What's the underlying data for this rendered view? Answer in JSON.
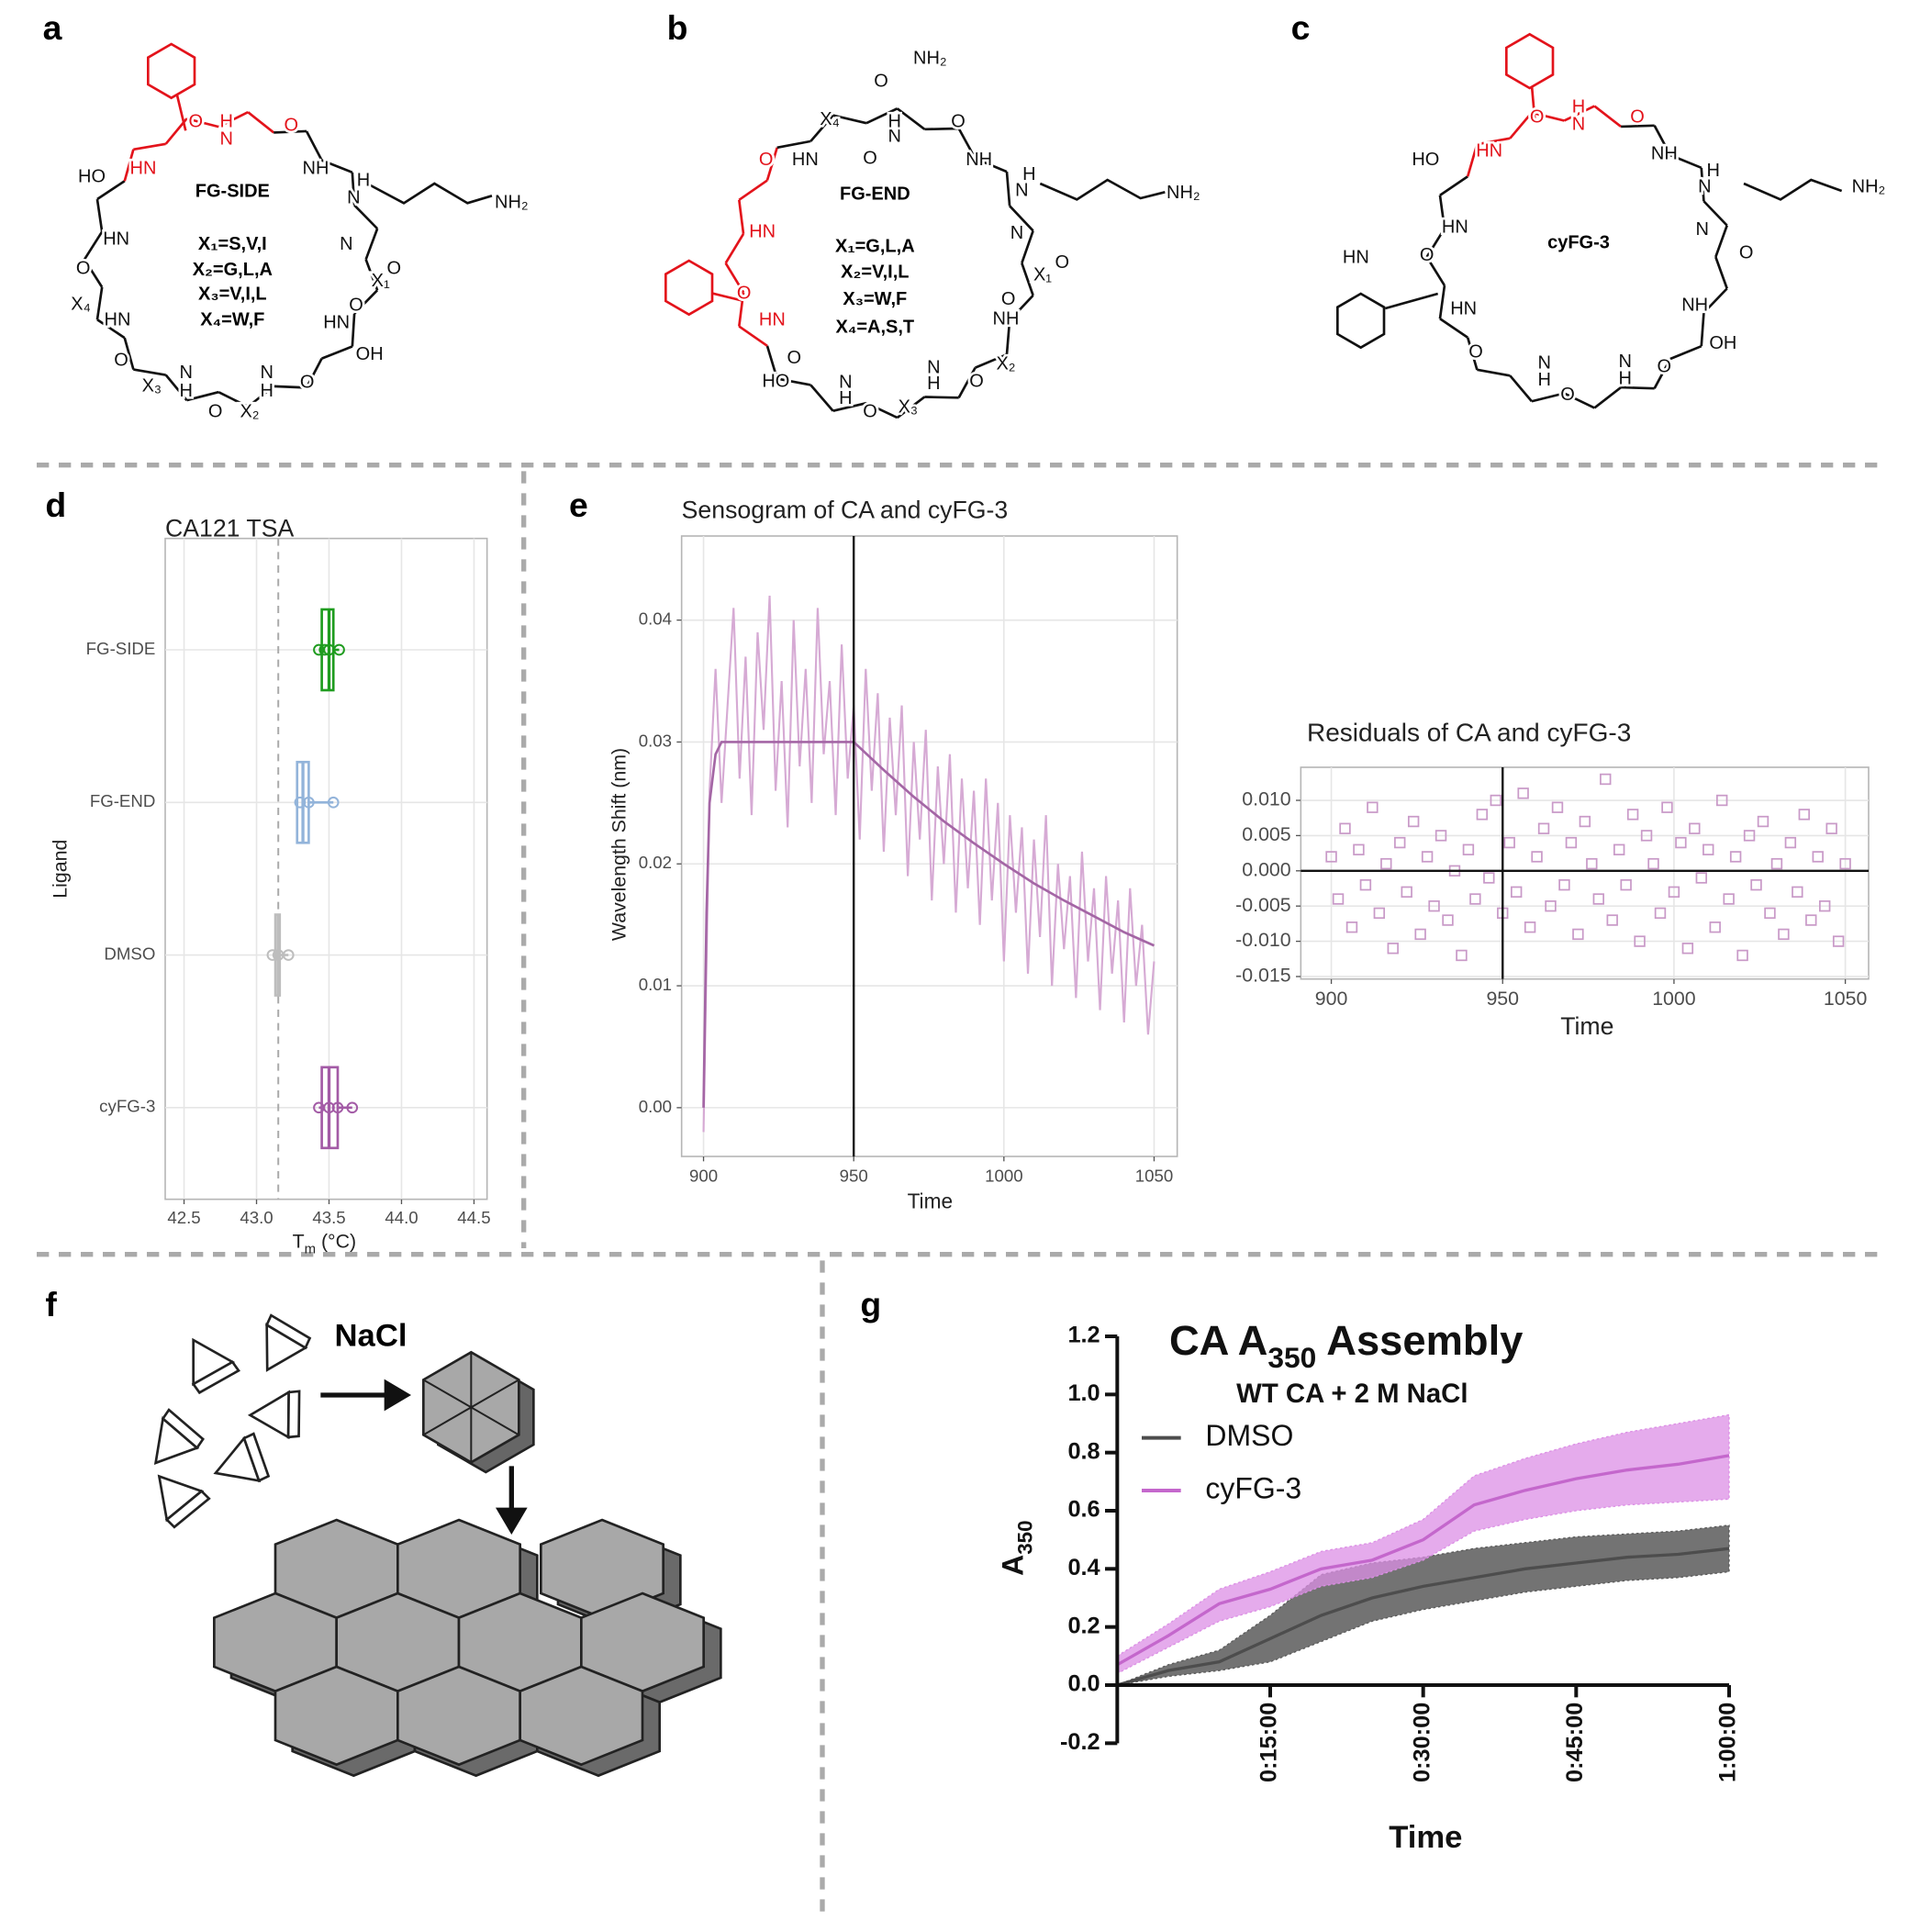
{
  "panel_labels": [
    "a",
    "b",
    "c",
    "d",
    "e",
    "f",
    "g"
  ],
  "structures": {
    "highlight_color": "#e3131b",
    "items": [
      {
        "center_label": "FG-SIDE",
        "substitutions": [
          "X₁=S,V,I",
          "X₂=G,L,A",
          "X₃=V,I,L",
          "X₄=W,F"
        ],
        "atoms": [
          {
            "text": "HN",
            "highlight": true
          },
          {
            "text": "O",
            "highlight": true
          },
          {
            "text": "H",
            "highlight": true
          },
          {
            "text": "N",
            "highlight": true
          },
          {
            "text": "O",
            "highlight": true
          },
          {
            "text": "NH"
          },
          {
            "text": "H"
          },
          {
            "text": "N"
          },
          {
            "text": "NH₂"
          },
          {
            "text": "N"
          },
          {
            "text": "O"
          },
          {
            "text": "X₁"
          },
          {
            "text": "O"
          },
          {
            "text": "HN"
          },
          {
            "text": "OH"
          },
          {
            "text": "HO"
          },
          {
            "text": "HN"
          },
          {
            "text": "O"
          },
          {
            "text": "X₄"
          },
          {
            "text": "HN"
          },
          {
            "text": "O"
          },
          {
            "text": "X₃"
          },
          {
            "text": "N"
          },
          {
            "text": "H"
          },
          {
            "text": "O"
          },
          {
            "text": "X₂"
          },
          {
            "text": "N"
          },
          {
            "text": "H"
          },
          {
            "text": "O"
          }
        ]
      },
      {
        "center_label": "FG-END",
        "substitutions": [
          "X₁=G,L,A",
          "X₂=V,I,L",
          "X₃=W,F",
          "X₄=A,S,T"
        ],
        "atoms": [
          {
            "text": "NH₂"
          },
          {
            "text": "O"
          },
          {
            "text": "X₄"
          },
          {
            "text": "HN"
          },
          {
            "text": "N"
          },
          {
            "text": "H"
          },
          {
            "text": "O"
          },
          {
            "text": "O"
          },
          {
            "text": "NH"
          },
          {
            "text": "H"
          },
          {
            "text": "N"
          },
          {
            "text": "NH₂"
          },
          {
            "text": "N"
          },
          {
            "text": "O"
          },
          {
            "text": "X₁"
          },
          {
            "text": "O"
          },
          {
            "text": "NH"
          },
          {
            "text": "X₂"
          },
          {
            "text": "O"
          },
          {
            "text": "N"
          },
          {
            "text": "H"
          },
          {
            "text": "X₃"
          },
          {
            "text": "O"
          },
          {
            "text": "N"
          },
          {
            "text": "H"
          },
          {
            "text": "O"
          },
          {
            "text": "HO"
          },
          {
            "text": "HN",
            "highlight": true
          },
          {
            "text": "O",
            "highlight": true
          },
          {
            "text": "HN",
            "highlight": true
          },
          {
            "text": "O",
            "highlight": true
          }
        ]
      },
      {
        "center_label": "cyFG-3",
        "substitutions": [],
        "atoms": [
          {
            "text": "HN",
            "highlight": true
          },
          {
            "text": "O",
            "highlight": true
          },
          {
            "text": "H",
            "highlight": true
          },
          {
            "text": "N",
            "highlight": true
          },
          {
            "text": "O",
            "highlight": true
          },
          {
            "text": "NH"
          },
          {
            "text": "H"
          },
          {
            "text": "N"
          },
          {
            "text": "NH₂"
          },
          {
            "text": "N"
          },
          {
            "text": "O"
          },
          {
            "text": "NH"
          },
          {
            "text": "OH"
          },
          {
            "text": "HO"
          },
          {
            "text": "HN"
          },
          {
            "text": "O"
          },
          {
            "text": "HN"
          },
          {
            "text": "HN"
          },
          {
            "text": "O"
          },
          {
            "text": "N"
          },
          {
            "text": "H"
          },
          {
            "text": "O"
          },
          {
            "text": "N"
          },
          {
            "text": "H"
          },
          {
            "text": "O"
          }
        ]
      }
    ]
  },
  "diagram_f": {
    "label": "NaCl"
  },
  "chart_data": [
    {
      "type": "box",
      "title": "CA121 TSA",
      "xlabel_parts": [
        "T",
        "m",
        " (°C)"
      ],
      "ylabel": "Ligand",
      "categories": [
        "FG-SIDE",
        "FG-END",
        "DMSO",
        "cyFG-3"
      ],
      "colors": [
        "#1f9c1f",
        "#93b4da",
        "#bdbdbd",
        "#a35ba6"
      ],
      "boxes": [
        {
          "min": 43.43,
          "q1": 43.45,
          "median": 43.5,
          "q3": 43.53,
          "max": 43.57,
          "points": [
            43.43,
            43.47,
            43.5,
            43.57
          ]
        },
        {
          "min": 43.28,
          "q1": 43.28,
          "median": 43.32,
          "q3": 43.36,
          "max": 43.53,
          "points": [
            43.3,
            43.36,
            43.53
          ]
        },
        {
          "min": 43.11,
          "q1": 43.13,
          "median": 43.15,
          "q3": 43.16,
          "max": 43.22,
          "points": [
            43.11,
            43.15,
            43.22
          ]
        },
        {
          "min": 43.43,
          "q1": 43.45,
          "median": 43.5,
          "q3": 43.56,
          "max": 43.66,
          "points": [
            43.43,
            43.5,
            43.56,
            43.66
          ]
        }
      ],
      "reference_line": 43.15,
      "xlim": [
        42.37,
        44.59
      ],
      "xticks": [
        42.5,
        {
          "value": 43,
          "label": "43.0"
        },
        43.5,
        {
          "value": 44,
          "label": "44.0"
        },
        44.5
      ],
      "grid": true
    },
    {
      "type": "line",
      "title": "Sensogram of CA and cyFG-3",
      "xlabel": "Time",
      "ylabel": "Wavelength Shift (nm)",
      "xlim": [
        892.7,
        1057.7
      ],
      "xticks": [
        900,
        950,
        1000,
        1050
      ],
      "ylim": [
        -0.004,
        0.0469
      ],
      "yticks": [
        {
          "value": 0,
          "label": "0.00"
        },
        0.01,
        0.02,
        0.03,
        0.04
      ],
      "vline": 950,
      "grid": true,
      "x": [
        900,
        902,
        904,
        906,
        908,
        910,
        912,
        914,
        916,
        918,
        920,
        922,
        924,
        926,
        928,
        930,
        932,
        934,
        936,
        938,
        940,
        942,
        944,
        946,
        948,
        950,
        952,
        954,
        956,
        958,
        960,
        962,
        964,
        966,
        968,
        970,
        972,
        974,
        976,
        978,
        980,
        982,
        984,
        986,
        988,
        990,
        992,
        994,
        996,
        998,
        1000,
        1002,
        1004,
        1006,
        1008,
        1010,
        1012,
        1014,
        1016,
        1018,
        1020,
        1022,
        1024,
        1026,
        1028,
        1030,
        1032,
        1034,
        1036,
        1038,
        1040,
        1042,
        1044,
        1046,
        1048,
        1050
      ],
      "series": [
        {
          "color": "#d6aad4",
          "values": [
            -0.002,
            0.026,
            0.036,
            0.025,
            0.033,
            0.041,
            0.027,
            0.037,
            0.024,
            0.039,
            0.031,
            0.042,
            0.026,
            0.035,
            0.023,
            0.04,
            0.028,
            0.036,
            0.025,
            0.041,
            0.029,
            0.035,
            0.024,
            0.038,
            0.027,
            0.033,
            0.022,
            0.036,
            0.026,
            0.034,
            0.021,
            0.032,
            0.024,
            0.033,
            0.019,
            0.03,
            0.022,
            0.031,
            0.017,
            0.028,
            0.02,
            0.029,
            0.016,
            0.027,
            0.018,
            0.026,
            0.015,
            0.027,
            0.017,
            0.025,
            0.012,
            0.024,
            0.016,
            0.023,
            0.011,
            0.022,
            0.014,
            0.024,
            0.01,
            0.02,
            0.013,
            0.019,
            0.009,
            0.021,
            0.012,
            0.018,
            0.008,
            0.019,
            0.011,
            0.017,
            0.007,
            0.018,
            0.01,
            0.015,
            0.006,
            0.012
          ]
        },
        {
          "color": "#a466a5",
          "x": [
            900,
            901,
            902,
            904,
            906,
            950,
            960,
            970,
            980,
            990,
            1000,
            1010,
            1020,
            1030,
            1040,
            1050
          ],
          "values": [
            0,
            0.016,
            0.025,
            0.029,
            0.03,
            0.03,
            0.0277,
            0.0255,
            0.0235,
            0.0217,
            0.02,
            0.0184,
            0.017,
            0.0157,
            0.0144,
            0.0133
          ]
        }
      ]
    },
    {
      "type": "scatter",
      "title": "Residuals of CA and cyFG-3",
      "xlabel": "Time",
      "xlim": [
        891.1,
        1056.8
      ],
      "xticks": [
        900,
        950,
        1000,
        1050
      ],
      "ylim": [
        -0.01535,
        0.01469
      ],
      "yticks": [
        {
          "value": 0.01,
          "label": "0.010"
        },
        0.005,
        {
          "value": 0,
          "label": "0.000"
        },
        -0.005,
        {
          "value": -0.01,
          "label": "-0.010"
        },
        -0.015
      ],
      "vline": 950,
      "hline": 0,
      "grid": true,
      "x": [
        900,
        902,
        904,
        906,
        908,
        910,
        912,
        914,
        916,
        918,
        920,
        922,
        924,
        926,
        928,
        930,
        932,
        934,
        936,
        938,
        940,
        942,
        944,
        946,
        948,
        950,
        952,
        954,
        956,
        958,
        960,
        962,
        964,
        966,
        968,
        970,
        972,
        974,
        976,
        978,
        980,
        982,
        984,
        986,
        988,
        990,
        992,
        994,
        996,
        998,
        1000,
        1002,
        1004,
        1006,
        1008,
        1010,
        1012,
        1014,
        1016,
        1018,
        1020,
        1022,
        1024,
        1026,
        1028,
        1030,
        1032,
        1034,
        1036,
        1038,
        1040,
        1042,
        1044,
        1046,
        1048,
        1050
      ],
      "series": [
        {
          "color": "#c99ac8",
          "values": [
            0.002,
            -0.004,
            0.006,
            -0.008,
            0.003,
            -0.002,
            0.009,
            -0.006,
            0.001,
            -0.011,
            0.004,
            -0.003,
            0.007,
            -0.009,
            0.002,
            -0.005,
            0.005,
            -0.007,
            0.0,
            -0.012,
            0.003,
            -0.004,
            0.008,
            -0.001,
            0.01,
            -0.006,
            0.004,
            -0.003,
            0.011,
            -0.008,
            0.002,
            0.006,
            -0.005,
            0.009,
            -0.002,
            0.004,
            -0.009,
            0.007,
            0.001,
            -0.004,
            0.013,
            -0.007,
            0.003,
            -0.002,
            0.008,
            -0.01,
            0.005,
            0.001,
            -0.006,
            0.009,
            -0.003,
            0.004,
            -0.011,
            0.006,
            -0.001,
            0.003,
            -0.008,
            0.01,
            -0.004,
            0.002,
            -0.012,
            0.005,
            -0.002,
            0.007,
            -0.006,
            0.001,
            -0.009,
            0.004,
            -0.003,
            0.008,
            -0.007,
            0.002,
            -0.005,
            0.006,
            -0.01,
            0.001
          ]
        }
      ]
    },
    {
      "type": "line",
      "title_parts": [
        "CA A",
        "350",
        " Assembly"
      ],
      "subtitle": "WT CA + 2 M NaCl",
      "ylabel_parts": [
        "A",
        "350"
      ],
      "xlabel": "Time",
      "xlim": [
        0,
        60
      ],
      "xticks": [
        {
          "value": 15,
          "label": "0:15:00"
        },
        {
          "value": 30,
          "label": "0:30:00"
        },
        {
          "value": 45,
          "label": "0:45:00"
        },
        {
          "value": 60,
          "label": "1:00:00"
        }
      ],
      "ylim": [
        -0.2,
        1.2
      ],
      "yticks": [
        -0.2,
        {
          "value": 0,
          "label": "0.0"
        },
        0.2,
        0.4,
        0.6,
        0.8,
        {
          "value": 1,
          "label": "1.0"
        },
        1.2
      ],
      "grid": false,
      "legend": "top-left",
      "x": [
        0,
        5,
        10,
        15,
        20,
        25,
        30,
        35,
        40,
        45,
        50,
        55,
        60
      ],
      "series": [
        {
          "name": "DMSO",
          "color": "#4d4d4d",
          "band_color": "#5a5a5a",
          "values": [
            0,
            0.05,
            0.08,
            0.16,
            0.24,
            0.3,
            0.34,
            0.37,
            0.4,
            0.42,
            0.44,
            0.45,
            0.47
          ],
          "lower": [
            0,
            0.03,
            0.05,
            0.08,
            0.15,
            0.22,
            0.26,
            0.29,
            0.32,
            0.34,
            0.36,
            0.37,
            0.39
          ],
          "upper": [
            0,
            0.07,
            0.12,
            0.24,
            0.38,
            0.42,
            0.44,
            0.47,
            0.49,
            0.51,
            0.52,
            0.53,
            0.55
          ]
        },
        {
          "name": "cyFG-3",
          "color": "#c467cc",
          "band_color": "#dc8fe5",
          "values": [
            0.07,
            0.17,
            0.28,
            0.33,
            0.4,
            0.43,
            0.5,
            0.62,
            0.67,
            0.71,
            0.74,
            0.76,
            0.79
          ],
          "lower": [
            0.04,
            0.13,
            0.22,
            0.27,
            0.34,
            0.37,
            0.43,
            0.53,
            0.57,
            0.6,
            0.62,
            0.63,
            0.64
          ],
          "upper": [
            0.1,
            0.21,
            0.33,
            0.39,
            0.46,
            0.49,
            0.57,
            0.72,
            0.78,
            0.83,
            0.87,
            0.9,
            0.93
          ]
        }
      ]
    }
  ]
}
